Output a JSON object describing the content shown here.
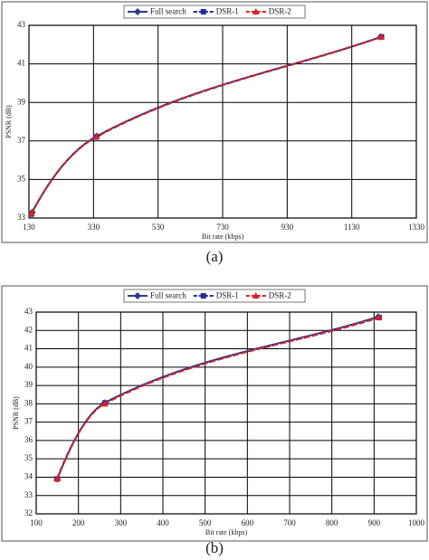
{
  "chart_data": [
    {
      "type": "line",
      "caption": "(a)",
      "xlabel": "Bit rate (kbps)",
      "ylabel": "PSNR (dB)",
      "xlim": [
        130,
        1330
      ],
      "xticks": [
        130,
        330,
        530,
        730,
        930,
        1130,
        1330
      ],
      "ylim": [
        33,
        43
      ],
      "yticks": [
        33,
        35,
        37,
        39,
        41,
        43
      ],
      "grid": true,
      "legend": "top",
      "series": [
        {
          "name": "Full search",
          "color": "#2e3a87",
          "marker": "diamond",
          "dashed": false,
          "x": [
            140,
            340,
            1220
          ],
          "values": [
            33.3,
            37.25,
            42.4
          ]
        },
        {
          "name": "DSR-1",
          "color": "#1f2f9a",
          "marker": "square",
          "dashed": true,
          "x": [
            137,
            338,
            1222
          ],
          "values": [
            33.2,
            37.2,
            42.4
          ]
        },
        {
          "name": "DSR-2",
          "color": "#e02020",
          "marker": "triangle",
          "dashed": true,
          "x": [
            138,
            339,
            1221
          ],
          "values": [
            33.25,
            37.22,
            42.4
          ]
        }
      ]
    },
    {
      "type": "line",
      "caption": "(b)",
      "xlabel": "Bit rate (kbps)",
      "ylabel": "PSNR (dB)",
      "xlim": [
        100,
        1000
      ],
      "xticks": [
        100,
        200,
        300,
        400,
        500,
        600,
        700,
        800,
        900,
        1000
      ],
      "ylim": [
        32,
        43
      ],
      "yticks": [
        32,
        33,
        34,
        35,
        36,
        37,
        38,
        39,
        40,
        41,
        42,
        43
      ],
      "grid": true,
      "legend": "top",
      "series": [
        {
          "name": "Full search",
          "color": "#2e3a87",
          "marker": "diamond",
          "dashed": false,
          "x": [
            150,
            262,
            910
          ],
          "values": [
            33.9,
            38.05,
            42.75
          ]
        },
        {
          "name": "DSR-1",
          "color": "#1f2f9a",
          "marker": "square",
          "dashed": true,
          "x": [
            149,
            263,
            912
          ],
          "values": [
            33.9,
            38.05,
            42.7
          ]
        },
        {
          "name": "DSR-2",
          "color": "#e02020",
          "marker": "triangle",
          "dashed": true,
          "x": [
            150,
            262,
            911
          ],
          "values": [
            33.92,
            38.0,
            42.72
          ]
        }
      ]
    }
  ]
}
